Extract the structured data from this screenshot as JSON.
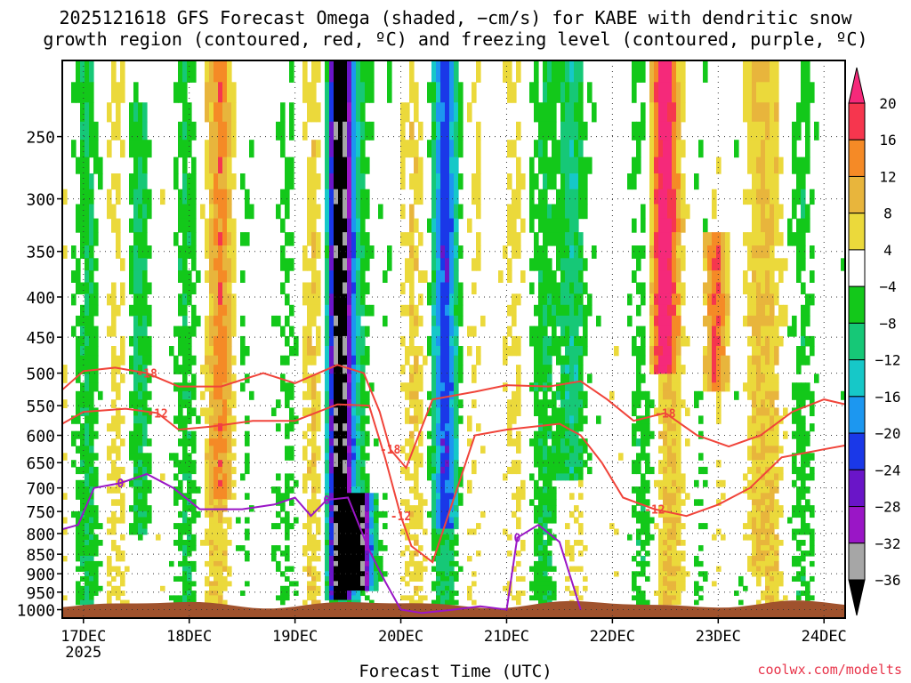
{
  "chart_data": {
    "type": "heatmap",
    "title_line1": "2025121618 GFS Forecast Omega (shaded, −cm/s) for KABE with dendritic snow",
    "title_line2": "growth region (contoured, red, ºC) and freezing level (contoured, purple, ºC)",
    "xlabel": "Forecast Time (UTC)",
    "ylabel": "",
    "credit": "coolwx.com/modelts",
    "x_ticks": [
      "17DEC",
      "18DEC",
      "19DEC",
      "20DEC",
      "21DEC",
      "22DEC",
      "23DEC",
      "24DEC"
    ],
    "x_year_label": "2025",
    "y_ticks": [
      "250",
      "300",
      "350",
      "400",
      "450",
      "500",
      "550",
      "600",
      "650",
      "700",
      "750",
      "800",
      "850",
      "900",
      "950",
      "1000"
    ],
    "y_values": [
      250,
      300,
      350,
      400,
      450,
      500,
      550,
      600,
      650,
      700,
      750,
      800,
      850,
      900,
      950,
      1000
    ],
    "xlim_days": [
      16.8,
      24.2
    ],
    "ylim_hpa": [
      200,
      1025
    ],
    "colorbar_labels": [
      "20",
      "16",
      "12",
      "8",
      "4",
      "−4",
      "−8",
      "−12",
      "−16",
      "−20",
      "−24",
      "−28",
      "−32",
      "−36"
    ],
    "colorbar_colors": [
      "#f5297a",
      "#f6364e",
      "#f58a26",
      "#e8b53c",
      "#ebd93b",
      "#ffffff",
      "#13c81a",
      "#16c877",
      "#16c8c8",
      "#1c97f0",
      "#1a38e8",
      "#6a15c8",
      "#9a16c6",
      "#a6a6a6",
      "#000000"
    ],
    "contour_labels": {
      "dgz_upper": "-18",
      "dgz_lower": "-12",
      "freezing": "0"
    },
    "series": [
      {
        "name": "-18C isotherm (red)",
        "x_days": [
          16.8,
          17.0,
          17.3,
          17.6,
          17.9,
          18.3,
          18.7,
          19.0,
          19.4,
          19.65,
          19.8,
          19.9,
          20.05,
          20.3,
          20.7,
          21.0,
          21.4,
          21.7,
          21.95,
          22.2,
          22.5,
          22.8,
          23.1,
          23.4,
          23.7,
          24.0,
          24.2
        ],
        "pressure_hpa": [
          525,
          497,
          492,
          500,
          520,
          520,
          500,
          515,
          488,
          500,
          560,
          625,
          660,
          540,
          528,
          518,
          520,
          512,
          540,
          575,
          562,
          600,
          620,
          600,
          560,
          540,
          548
        ]
      },
      {
        "name": "-12C isotherm (red)",
        "x_days": [
          16.8,
          17.0,
          17.4,
          17.7,
          17.9,
          18.2,
          18.6,
          19.0,
          19.4,
          19.7,
          19.85,
          20.0,
          20.1,
          20.3,
          20.7,
          21.0,
          21.5,
          21.7,
          21.9,
          22.1,
          22.4,
          22.7,
          23.0,
          23.3,
          23.6,
          24.0,
          24.2
        ],
        "pressure_hpa": [
          580,
          560,
          555,
          562,
          590,
          585,
          575,
          575,
          548,
          550,
          640,
          760,
          830,
          870,
          600,
          590,
          580,
          600,
          650,
          720,
          745,
          760,
          735,
          700,
          640,
          625,
          618
        ]
      },
      {
        "name": "0C freezing level (purple)",
        "x_days": [
          16.8,
          16.95,
          17.1,
          17.35,
          17.6,
          17.85,
          18.1,
          18.5,
          18.8,
          19.0,
          19.15,
          19.3,
          19.5,
          19.7,
          19.85,
          20.0,
          20.2,
          20.5,
          20.75,
          21.0,
          21.1,
          21.3,
          21.5,
          21.7
        ],
        "pressure_hpa": [
          790,
          780,
          700,
          690,
          672,
          700,
          745,
          745,
          735,
          720,
          760,
          725,
          720,
          840,
          920,
          1000,
          1010,
          1000,
          990,
          1000,
          810,
          780,
          820,
          1000
        ]
      }
    ],
    "omega_features": [
      {
        "x_day": 17.5,
        "p_top": 220,
        "p_bottom": 800,
        "value": -8
      },
      {
        "x_day": 18.3,
        "p_top": 200,
        "p_bottom": 720,
        "value": 8
      },
      {
        "x_day": 19.4,
        "p_top": 200,
        "p_bottom": 960,
        "value": -36
      },
      {
        "x_day": 19.6,
        "p_top": 700,
        "p_bottom": 940,
        "value": -36
      },
      {
        "x_day": 20.4,
        "p_top": 200,
        "p_bottom": 780,
        "value": -16
      },
      {
        "x_day": 21.6,
        "p_top": 200,
        "p_bottom": 680,
        "value": -16
      },
      {
        "x_day": 22.45,
        "p_top": 200,
        "p_bottom": 500,
        "value": 20
      },
      {
        "x_day": 22.95,
        "p_top": 320,
        "p_bottom": 520,
        "value": 16
      },
      {
        "x_day": 23.3,
        "p_top": 200,
        "p_bottom": 900,
        "value": 8
      }
    ],
    "terrain_top_hpa": 985
  }
}
